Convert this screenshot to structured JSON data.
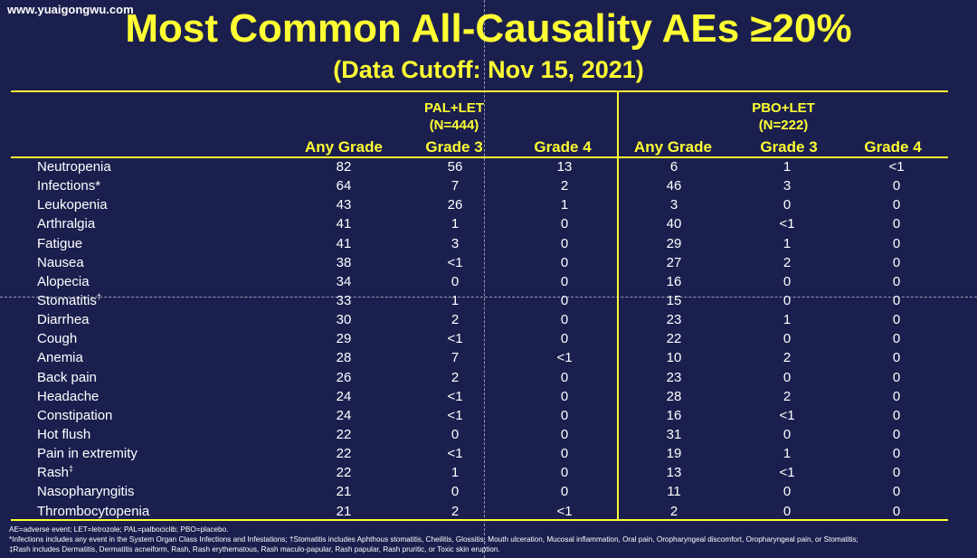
{
  "watermark": "www.yuaigongwu.com",
  "title": "Most Common All-Causality AEs ≥20%",
  "subtitle": "(Data Cutoff: Nov 15, 2021)",
  "groups": [
    {
      "name": "PAL+LET",
      "n": "(N=444)"
    },
    {
      "name": "PBO+LET",
      "n": "(N=222)"
    }
  ],
  "columns": [
    "Any Grade",
    "Grade 3",
    "Grade 4",
    "Any Grade",
    "Grade 3",
    "Grade 4"
  ],
  "rows": [
    {
      "ae": "Neutropenia",
      "mark": "",
      "values": [
        "82",
        "56",
        "13",
        "6",
        "1",
        "<1"
      ]
    },
    {
      "ae": "Infections*",
      "mark": "",
      "values": [
        "64",
        "7",
        "2",
        "46",
        "3",
        "0"
      ]
    },
    {
      "ae": "Leukopenia",
      "mark": "",
      "values": [
        "43",
        "26",
        "1",
        "3",
        "0",
        "0"
      ]
    },
    {
      "ae": "Arthralgia",
      "mark": "",
      "values": [
        "41",
        "1",
        "0",
        "40",
        "<1",
        "0"
      ]
    },
    {
      "ae": "Fatigue",
      "mark": "",
      "values": [
        "41",
        "3",
        "0",
        "29",
        "1",
        "0"
      ]
    },
    {
      "ae": "Nausea",
      "mark": "",
      "values": [
        "38",
        "<1",
        "0",
        "27",
        "2",
        "0"
      ]
    },
    {
      "ae": "Alopecia",
      "mark": "",
      "values": [
        "34",
        "0",
        "0",
        "16",
        "0",
        "0"
      ]
    },
    {
      "ae": "Stomatitis",
      "mark": "†",
      "values": [
        "33",
        "1",
        "0",
        "15",
        "0",
        "0"
      ]
    },
    {
      "ae": "Diarrhea",
      "mark": "",
      "values": [
        "30",
        "2",
        "0",
        "23",
        "1",
        "0"
      ]
    },
    {
      "ae": "Cough",
      "mark": "",
      "values": [
        "29",
        "<1",
        "0",
        "22",
        "0",
        "0"
      ]
    },
    {
      "ae": "Anemia",
      "mark": "",
      "values": [
        "28",
        "7",
        "<1",
        "10",
        "2",
        "0"
      ]
    },
    {
      "ae": "Back pain",
      "mark": "",
      "values": [
        "26",
        "2",
        "0",
        "23",
        "0",
        "0"
      ]
    },
    {
      "ae": "Headache",
      "mark": "",
      "values": [
        "24",
        "<1",
        "0",
        "28",
        "2",
        "0"
      ]
    },
    {
      "ae": "Constipation",
      "mark": "",
      "values": [
        "24",
        "<1",
        "0",
        "16",
        "<1",
        "0"
      ]
    },
    {
      "ae": "Hot flush",
      "mark": "",
      "values": [
        "22",
        "0",
        "0",
        "31",
        "0",
        "0"
      ]
    },
    {
      "ae": "Pain in extremity",
      "mark": "",
      "values": [
        "22",
        "<1",
        "0",
        "19",
        "1",
        "0"
      ]
    },
    {
      "ae": "Rash",
      "mark": "‡",
      "values": [
        "22",
        "1",
        "0",
        "13",
        "<1",
        "0"
      ]
    },
    {
      "ae": "Nasopharyngitis",
      "mark": "",
      "values": [
        "21",
        "0",
        "0",
        "11",
        "0",
        "0"
      ]
    },
    {
      "ae": "Thrombocytopenia",
      "mark": "",
      "values": [
        "21",
        "2",
        "<1",
        "2",
        "0",
        "0"
      ]
    }
  ],
  "footnotes": [
    "AE=adverse event; LET=letrozole; PAL=palbociclib; PBO=placebo.",
    "*Infections includes any event in the System Organ Class Infections and Infestations; †Stomatitis includes Aphthous stomatitis, Cheilitis, Glossitis, Mouth ulceration, Mucosal inflammation, Oral pain, Oropharyngeal discomfort, Oropharyngeal pain, or Stomatitis;",
    "‡Rash includes Dermatitis, Dermatitis acneiform, Rash, Rash erythematous, Rash maculo-papular, Rash papular, Rash pruritic, or Toxic skin eruption."
  ]
}
